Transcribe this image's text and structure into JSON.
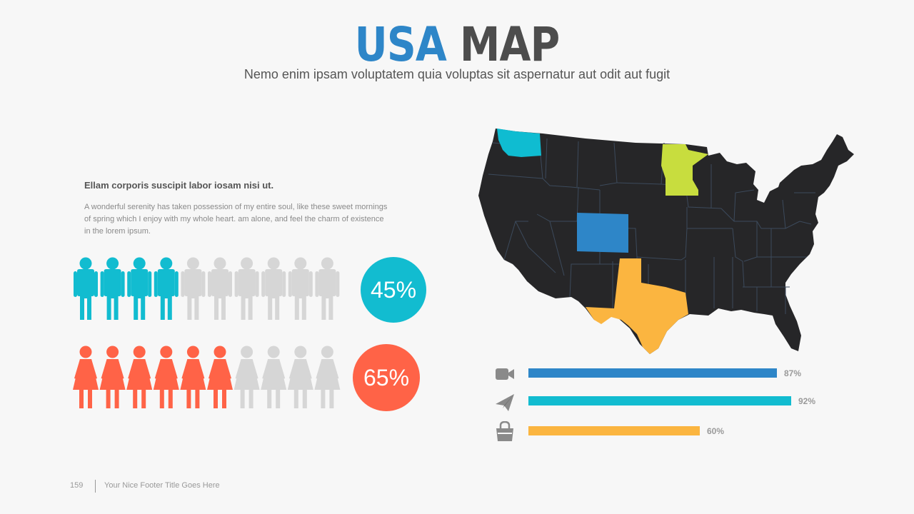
{
  "header": {
    "title_part1": "USA",
    "title_part2": "MAP",
    "subtitle": "Nemo enim ipsam voluptatem quia voluptas sit aspernatur aut odit aut fugit"
  },
  "text_block": {
    "heading": "Ellam corporis suscipit labor iosam nisi ut.",
    "body": "A wonderful serenity has taken possession of my entire soul, like these sweet mornings of spring which I enjoy with my whole heart. am alone, and feel the charm of existence in the lorem ipsum."
  },
  "people_stats": [
    {
      "icon": "male-person-icon",
      "total": 10,
      "filled": 4,
      "color": "#12bcd0",
      "percent_label": "45%"
    },
    {
      "icon": "female-person-icon",
      "total": 10,
      "filled": 6,
      "color": "#ff6347",
      "percent_label": "65%"
    }
  ],
  "map": {
    "highlighted_states": [
      {
        "name": "Washington",
        "color": "#0fbcd1"
      },
      {
        "name": "Minnesota",
        "color": "#c8dd3e"
      },
      {
        "name": "Colorado",
        "color": "#2e86c8"
      },
      {
        "name": "Texas",
        "color": "#fbb540"
      }
    ],
    "base_color": "#262628"
  },
  "bars": [
    {
      "icon": "video-camera-icon",
      "value": 87,
      "label": "87%",
      "color": "#2e86c8"
    },
    {
      "icon": "paper-plane-icon",
      "value": 92,
      "label": "92%",
      "color": "#12bcd0"
    },
    {
      "icon": "shopping-bag-icon",
      "value": 60,
      "label": "60%",
      "color": "#fbb540"
    }
  ],
  "footer": {
    "page_number": "159",
    "title": "Your Nice Footer Title Goes Here"
  }
}
